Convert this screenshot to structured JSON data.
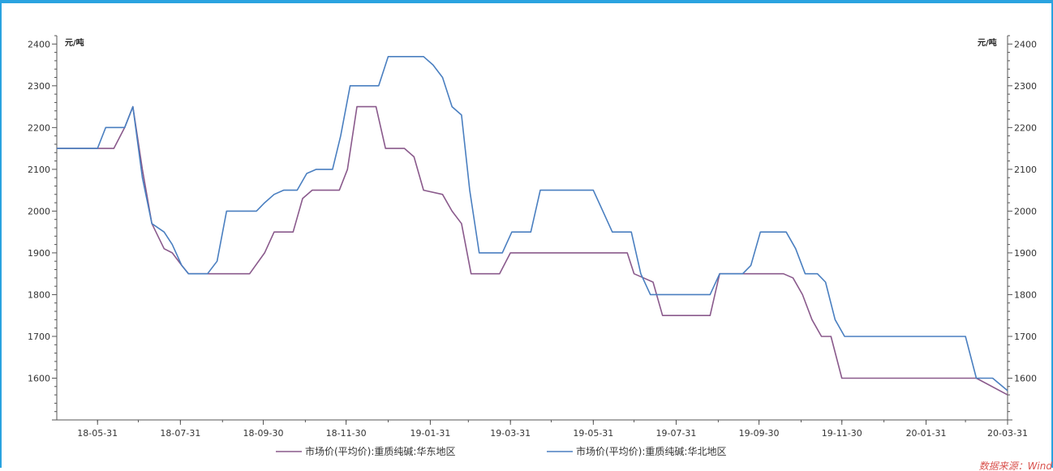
{
  "chart_data": {
    "type": "line",
    "title": "",
    "xlabel": "",
    "ylabel_left": "元/吨",
    "ylabel_right": "元/吨",
    "ylim": [
      1500,
      2420
    ],
    "yticks": [
      1600,
      1700,
      1800,
      1900,
      2000,
      2100,
      2200,
      2300,
      2400
    ],
    "xlim": [
      "2018-05-01",
      "2020-03-31"
    ],
    "xticks": [
      "18-05-31",
      "18-07-31",
      "18-09-30",
      "18-11-30",
      "19-01-31",
      "19-03-31",
      "19-05-31",
      "19-07-31",
      "19-09-30",
      "19-11-30",
      "20-01-31",
      "20-03-31"
    ],
    "xtick_dates": [
      "2018-05-31",
      "2018-07-31",
      "2018-09-30",
      "2018-11-30",
      "2019-01-31",
      "2019-03-31",
      "2019-05-31",
      "2019-07-31",
      "2019-09-30",
      "2019-11-30",
      "2020-01-31",
      "2020-03-31"
    ],
    "grid": false,
    "legend_position": "bottom",
    "series": [
      {
        "name": "市场价(平均价):重质纯碱:华东地区",
        "color": "#8a5a8c",
        "points": [
          [
            "2018-05-01",
            2150
          ],
          [
            "2018-06-12",
            2150
          ],
          [
            "2018-06-20",
            2200
          ],
          [
            "2018-06-26",
            2250
          ],
          [
            "2018-07-03",
            2100
          ],
          [
            "2018-07-10",
            1970
          ],
          [
            "2018-07-19",
            1910
          ],
          [
            "2018-07-25",
            1900
          ],
          [
            "2018-08-01",
            1870
          ],
          [
            "2018-08-06",
            1850
          ],
          [
            "2018-09-20",
            1850
          ],
          [
            "2018-10-01",
            1900
          ],
          [
            "2018-10-08",
            1950
          ],
          [
            "2018-10-22",
            1950
          ],
          [
            "2018-10-29",
            2030
          ],
          [
            "2018-11-05",
            2050
          ],
          [
            "2018-11-25",
            2050
          ],
          [
            "2018-12-01",
            2100
          ],
          [
            "2018-12-08",
            2250
          ],
          [
            "2018-12-22",
            2250
          ],
          [
            "2018-12-29",
            2150
          ],
          [
            "2019-01-12",
            2150
          ],
          [
            "2019-01-19",
            2130
          ],
          [
            "2019-01-26",
            2050
          ],
          [
            "2019-02-09",
            2040
          ],
          [
            "2019-02-16",
            2000
          ],
          [
            "2019-02-23",
            1970
          ],
          [
            "2019-03-02",
            1850
          ],
          [
            "2019-03-23",
            1850
          ],
          [
            "2019-03-31",
            1900
          ],
          [
            "2019-06-25",
            1900
          ],
          [
            "2019-06-30",
            1850
          ],
          [
            "2019-07-07",
            1840
          ],
          [
            "2019-07-14",
            1830
          ],
          [
            "2019-07-21",
            1750
          ],
          [
            "2019-08-25",
            1750
          ],
          [
            "2019-09-01",
            1850
          ],
          [
            "2019-10-18",
            1850
          ],
          [
            "2019-10-25",
            1840
          ],
          [
            "2019-11-01",
            1800
          ],
          [
            "2019-11-08",
            1740
          ],
          [
            "2019-11-15",
            1700
          ],
          [
            "2019-11-22",
            1700
          ],
          [
            "2019-11-30",
            1600
          ],
          [
            "2020-03-08",
            1600
          ],
          [
            "2020-03-31",
            1560
          ]
        ]
      },
      {
        "name": "市场价(平均价):重质纯碱:华北地区",
        "color": "#4a7fc0",
        "points": [
          [
            "2018-05-01",
            2150
          ],
          [
            "2018-05-31",
            2150
          ],
          [
            "2018-06-06",
            2200
          ],
          [
            "2018-06-20",
            2200
          ],
          [
            "2018-06-26",
            2250
          ],
          [
            "2018-07-03",
            2080
          ],
          [
            "2018-07-10",
            1970
          ],
          [
            "2018-07-19",
            1950
          ],
          [
            "2018-07-25",
            1920
          ],
          [
            "2018-08-01",
            1870
          ],
          [
            "2018-08-06",
            1850
          ],
          [
            "2018-08-20",
            1850
          ],
          [
            "2018-08-27",
            1880
          ],
          [
            "2018-09-03",
            2000
          ],
          [
            "2018-09-25",
            2000
          ],
          [
            "2018-10-01",
            2020
          ],
          [
            "2018-10-08",
            2040
          ],
          [
            "2018-10-15",
            2050
          ],
          [
            "2018-10-25",
            2050
          ],
          [
            "2018-11-01",
            2090
          ],
          [
            "2018-11-08",
            2100
          ],
          [
            "2018-11-20",
            2100
          ],
          [
            "2018-11-26",
            2180
          ],
          [
            "2018-12-03",
            2300
          ],
          [
            "2018-12-24",
            2300
          ],
          [
            "2018-12-31",
            2370
          ],
          [
            "2019-01-26",
            2370
          ],
          [
            "2019-02-02",
            2350
          ],
          [
            "2019-02-09",
            2320
          ],
          [
            "2019-02-16",
            2250
          ],
          [
            "2019-02-23",
            2230
          ],
          [
            "2019-03-01",
            2050
          ],
          [
            "2019-03-08",
            1900
          ],
          [
            "2019-03-25",
            1900
          ],
          [
            "2019-04-01",
            1950
          ],
          [
            "2019-04-15",
            1950
          ],
          [
            "2019-04-22",
            2050
          ],
          [
            "2019-05-31",
            2050
          ],
          [
            "2019-06-07",
            2000
          ],
          [
            "2019-06-14",
            1950
          ],
          [
            "2019-06-28",
            1950
          ],
          [
            "2019-07-05",
            1850
          ],
          [
            "2019-07-12",
            1800
          ],
          [
            "2019-08-25",
            1800
          ],
          [
            "2019-09-01",
            1850
          ],
          [
            "2019-09-18",
            1850
          ],
          [
            "2019-09-24",
            1870
          ],
          [
            "2019-10-01",
            1950
          ],
          [
            "2019-10-20",
            1950
          ],
          [
            "2019-10-27",
            1910
          ],
          [
            "2019-11-03",
            1850
          ],
          [
            "2019-11-12",
            1850
          ],
          [
            "2019-11-18",
            1830
          ],
          [
            "2019-11-25",
            1740
          ],
          [
            "2019-12-02",
            1700
          ],
          [
            "2020-02-29",
            1700
          ],
          [
            "2020-03-08",
            1600
          ],
          [
            "2020-03-20",
            1600
          ],
          [
            "2020-03-31",
            1570
          ]
        ]
      }
    ]
  },
  "source_text": "数据来源：Wind"
}
